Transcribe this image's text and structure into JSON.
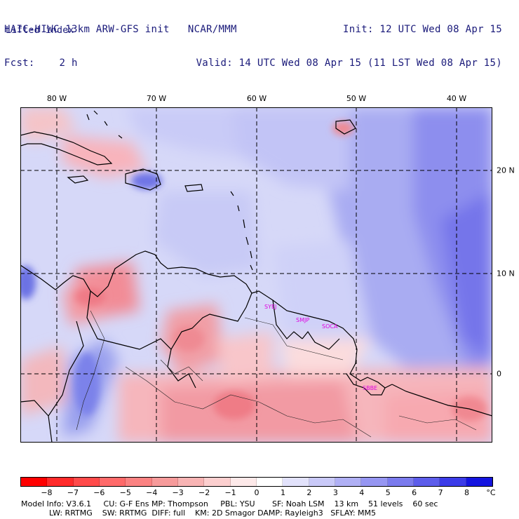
{
  "header": {
    "left_line1": "HAIC-HIWC 13km ARW-GFS init   NCAR/MMM",
    "left_line2": "Fcst:    2 h",
    "right_line1": "Init: 12 UTC Wed 08 Apr 15",
    "right_line2": "Valid: 14 UTC Wed 08 Apr 15 (11 LST Wed 08 Apr 15)",
    "field_name": "Lifted index"
  },
  "map": {
    "lon_labels": [
      "80 W",
      "70 W",
      "60 W",
      "50 W",
      "40 W"
    ],
    "lat_labels": [
      "20 N",
      "10 N",
      "0"
    ],
    "stations": [
      "SYEJ",
      "SMJP",
      "SOCA",
      "SBBE"
    ]
  },
  "colorbar": {
    "unit": "°C",
    "labels": [
      "−8",
      "−7",
      "−6",
      "−5",
      "−4",
      "−3",
      "−2",
      "−1",
      "0",
      "1",
      "2",
      "3",
      "4",
      "5",
      "6",
      "7",
      "8"
    ],
    "colors": [
      "#ff0000",
      "#ff2a2a",
      "#ff4a4a",
      "#ff6a6a",
      "#fb8282",
      "#f79b9b",
      "#f8b4b4",
      "#fccfcf",
      "#fde9e9",
      "#ffffff",
      "#e2e2fb",
      "#c9c9f8",
      "#b0b0f5",
      "#9696f2",
      "#7b7bee",
      "#5d5deb",
      "#3b3be8",
      "#1414e0"
    ]
  },
  "footer": {
    "line1": "Model Info: V3.6.1     CU: G-F Ens MP: Thompson     PBL: YSU       SF: Noah LSM    13 km    51 levels    60 sec",
    "line2": "LW: RRTMG    SW: RRTMG  DIFF: full    KM: 2D Smagor DAMP: Rayleigh3   SFLAY: MM5"
  }
}
